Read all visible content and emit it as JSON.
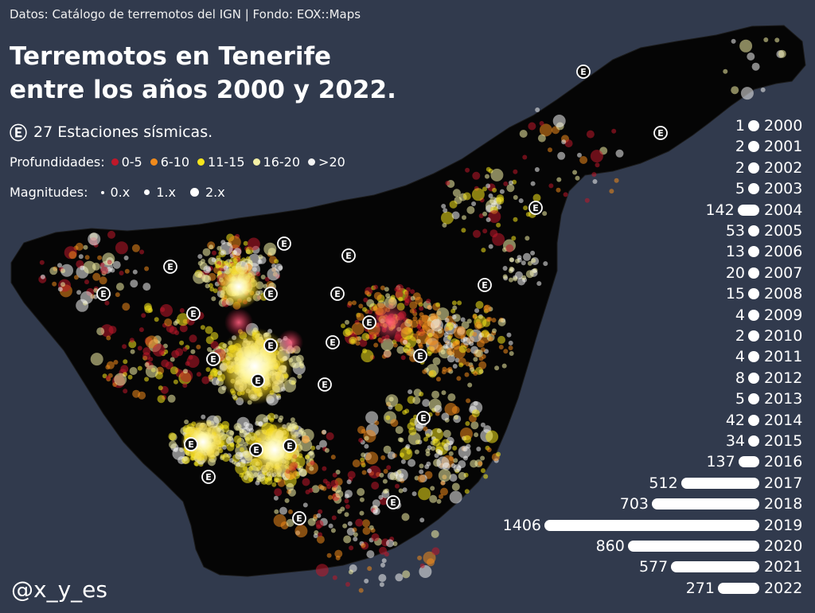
{
  "header": {
    "source": "Datos: Catálogo de terremotos del IGN | Fondo: EOX::Maps",
    "title_line1": "Terremotos en Tenerife",
    "title_line2": "entre los años 2000 y 2022.",
    "stations_icon": "Ⓔ",
    "stations_label": "27 Estaciones sísmicas."
  },
  "legend": {
    "depth_label": "Profundidades:",
    "depths": [
      {
        "label": "0-5",
        "color": "#c0182a"
      },
      {
        "label": "6-10",
        "color": "#f08a1c"
      },
      {
        "label": "11-15",
        "color": "#f6e51c"
      },
      {
        "label": "16-20",
        "color": "#f4f0a6"
      },
      {
        "label": ">20",
        "color": "#f2f2f2"
      }
    ],
    "magnitude_label": "Magnitudes:",
    "magnitudes": [
      {
        "label": "0.x",
        "level": 1
      },
      {
        "label": "1.x",
        "level": 2
      },
      {
        "label": "2.x",
        "level": 3
      }
    ]
  },
  "footer": {
    "handle": "@x_y_es"
  },
  "years": [
    {
      "year": "2000",
      "count": 1
    },
    {
      "year": "2001",
      "count": 2
    },
    {
      "year": "2002",
      "count": 2
    },
    {
      "year": "2003",
      "count": 5
    },
    {
      "year": "2004",
      "count": 142
    },
    {
      "year": "2005",
      "count": 53
    },
    {
      "year": "2006",
      "count": 13
    },
    {
      "year": "2007",
      "count": 20
    },
    {
      "year": "2008",
      "count": 15
    },
    {
      "year": "2009",
      "count": 4
    },
    {
      "year": "2010",
      "count": 2
    },
    {
      "year": "2011",
      "count": 4
    },
    {
      "year": "2012",
      "count": 8
    },
    {
      "year": "2013",
      "count": 5
    },
    {
      "year": "2014",
      "count": 42
    },
    {
      "year": "2015",
      "count": 34
    },
    {
      "year": "2016",
      "count": 137
    },
    {
      "year": "2017",
      "count": 512
    },
    {
      "year": "2018",
      "count": 703
    },
    {
      "year": "2019",
      "count": 1406
    },
    {
      "year": "2020",
      "count": 860
    },
    {
      "year": "2021",
      "count": 577
    },
    {
      "year": "2022",
      "count": 271
    }
  ],
  "colors": {
    "background": "#313a4d",
    "island": "#050505",
    "station": "#ffffff"
  }
}
